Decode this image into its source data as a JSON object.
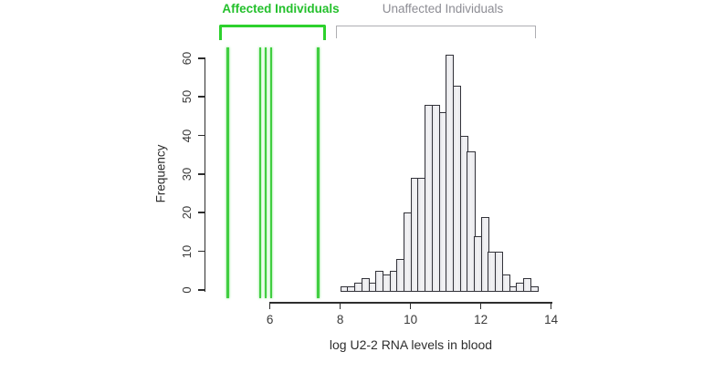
{
  "chart_data": {
    "type": "bar",
    "subtype": "histogram",
    "title": "",
    "xlabel": "log U2-2 RNA levels in blood",
    "ylabel": "Frequency",
    "xticks": [
      6,
      8,
      10,
      12,
      14
    ],
    "yticks": [
      0,
      10,
      20,
      30,
      40,
      50,
      60
    ],
    "xlim": [
      6,
      14
    ],
    "ylim": [
      0,
      62
    ],
    "grid": "off",
    "legend_position": "top-brackets",
    "histogram": {
      "series_label": "Unaffected Individuals",
      "bin_start": 8.0,
      "bin_width": 0.2,
      "counts": [
        1,
        1,
        2,
        3,
        2,
        5,
        4,
        5,
        8,
        20,
        29,
        29,
        48,
        48,
        46,
        61,
        53,
        40,
        36,
        14,
        19,
        10,
        10,
        4,
        1,
        2,
        3,
        1
      ]
    },
    "affected_individuals": {
      "label": "Affected Individuals",
      "values": [
        4.8,
        5.72,
        5.88,
        6.03,
        7.37
      ]
    },
    "colors": {
      "affected_line": "#41ce41",
      "affected_label": "#24c02c",
      "unaffected_label": "#8d8d94",
      "bar_fill": "#ececee",
      "bar_border": "#33333a",
      "axis": "#2e2e2e"
    }
  }
}
